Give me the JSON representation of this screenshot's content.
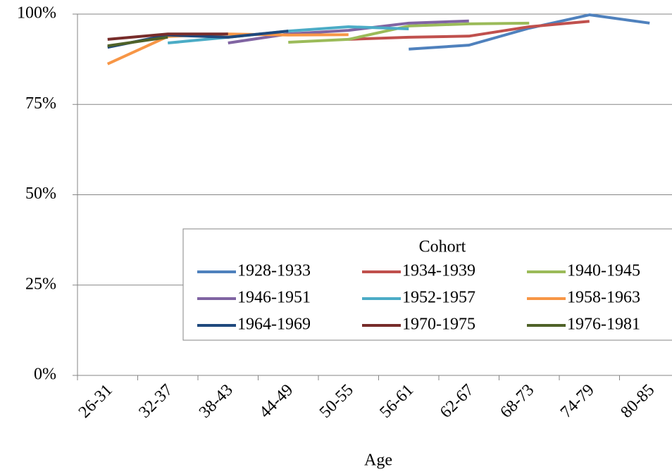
{
  "chart_data": {
    "type": "line",
    "x_label": "Age",
    "legend_title": "Cohort",
    "categories": [
      "26-31",
      "32-37",
      "38-43",
      "44-49",
      "50-55",
      "56-61",
      "62-67",
      "68-73",
      "74-79",
      "80-85"
    ],
    "series": [
      {
        "name": "1928-1933",
        "color": "#4f81bd",
        "values": [
          null,
          null,
          null,
          null,
          null,
          90.3,
          91.4,
          96.1,
          99.8,
          97.5
        ]
      },
      {
        "name": "1934-1939",
        "color": "#c0504d",
        "values": [
          null,
          null,
          null,
          null,
          93.0,
          93.6,
          93.9,
          96.5,
          98.0,
          null
        ]
      },
      {
        "name": "1940-1945",
        "color": "#9bbb59",
        "values": [
          null,
          null,
          null,
          92.2,
          93.0,
          96.7,
          97.3,
          97.5,
          null,
          null
        ]
      },
      {
        "name": "1946-1951",
        "color": "#8064a2",
        "values": [
          null,
          null,
          92.0,
          94.5,
          95.5,
          97.5,
          98.1,
          null,
          null,
          null
        ]
      },
      {
        "name": "1952-1957",
        "color": "#4bacc6",
        "values": [
          null,
          92.0,
          93.6,
          95.3,
          96.5,
          95.9,
          null,
          null,
          null,
          null
        ]
      },
      {
        "name": "1958-1963",
        "color": "#f79646",
        "values": [
          86.2,
          93.8,
          94.5,
          94.2,
          94.3,
          null,
          null,
          null,
          null,
          null
        ]
      },
      {
        "name": "1964-1969",
        "color": "#1f497d",
        "values": [
          90.8,
          94.2,
          93.6,
          95.3,
          null,
          null,
          null,
          null,
          null,
          null
        ]
      },
      {
        "name": "1970-1975",
        "color": "#772c2a",
        "values": [
          93.0,
          94.5,
          94.5,
          null,
          null,
          null,
          null,
          null,
          null,
          null
        ]
      },
      {
        "name": "1976-1981",
        "color": "#4f6228",
        "values": [
          91.2,
          93.6,
          null,
          null,
          null,
          null,
          null,
          null,
          null,
          null
        ]
      }
    ],
    "ylim": [
      0,
      100
    ],
    "yticks": [
      {
        "value": 0,
        "label": "0%"
      },
      {
        "value": 25,
        "label": "25%"
      },
      {
        "value": 50,
        "label": "50%"
      },
      {
        "value": 75,
        "label": "75%"
      },
      {
        "value": 100,
        "label": "100%"
      }
    ],
    "grid": true
  }
}
